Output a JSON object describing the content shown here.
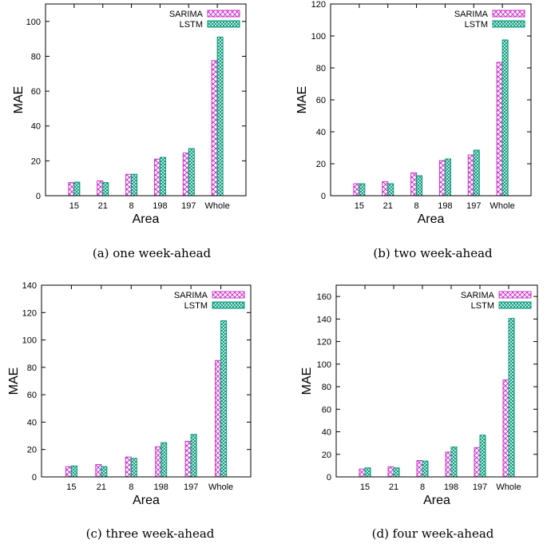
{
  "chart_data": [
    {
      "type": "bar",
      "panel": "a",
      "caption": "(a)  one week-ahead",
      "xlabel": "Area",
      "ylabel": "MAE",
      "categories": [
        "15",
        "21",
        "8",
        "198",
        "197",
        "Whole"
      ],
      "ylim": [
        0,
        110
      ],
      "yticks": [
        0,
        20,
        40,
        60,
        80,
        100
      ],
      "legend_position": "top-right",
      "series": [
        {
          "name": "SARIMA",
          "values": [
            7.5,
            8.5,
            12.3,
            21,
            24.5,
            77.5
          ],
          "color": "#cc33cc",
          "pattern": "cross-hatch"
        },
        {
          "name": "LSTM",
          "values": [
            7.8,
            7.5,
            12.3,
            22,
            27,
            91
          ],
          "color": "#009977",
          "pattern": "fine-cross-hatch"
        }
      ]
    },
    {
      "type": "bar",
      "panel": "b",
      "caption": "(b)  two week-ahead",
      "xlabel": "Area",
      "ylabel": "MAE",
      "categories": [
        "15",
        "21",
        "8",
        "198",
        "197",
        "Whole"
      ],
      "ylim": [
        0,
        120
      ],
      "yticks": [
        0,
        20,
        40,
        60,
        80,
        100,
        120
      ],
      "legend_position": "top-right",
      "series": [
        {
          "name": "SARIMA",
          "values": [
            7.5,
            8.8,
            14.3,
            22,
            25.5,
            83.5
          ],
          "color": "#cc33cc",
          "pattern": "cross-hatch"
        },
        {
          "name": "LSTM",
          "values": [
            7.5,
            7.5,
            12.5,
            23,
            28.5,
            97.5
          ],
          "color": "#009977",
          "pattern": "fine-cross-hatch"
        }
      ]
    },
    {
      "type": "bar",
      "panel": "c",
      "caption": "(c)  three week-ahead",
      "xlabel": "Area",
      "ylabel": "MAE",
      "categories": [
        "15",
        "21",
        "8",
        "198",
        "197",
        "Whole"
      ],
      "ylim": [
        0,
        140
      ],
      "yticks": [
        0,
        20,
        40,
        60,
        80,
        100,
        120,
        140
      ],
      "legend_position": "top-right",
      "series": [
        {
          "name": "SARIMA",
          "values": [
            7.5,
            9,
            14.5,
            22,
            26,
            85
          ],
          "color": "#cc33cc",
          "pattern": "cross-hatch"
        },
        {
          "name": "LSTM",
          "values": [
            8,
            7.5,
            13.5,
            25,
            31,
            114
          ],
          "color": "#009977",
          "pattern": "fine-cross-hatch"
        }
      ]
    },
    {
      "type": "bar",
      "panel": "d",
      "caption": "(d)  four week-ahead",
      "xlabel": "Area",
      "ylabel": "MAE",
      "categories": [
        "15",
        "21",
        "8",
        "198",
        "197",
        "Whole"
      ],
      "ylim": [
        0,
        170
      ],
      "yticks": [
        0,
        20,
        40,
        60,
        80,
        100,
        120,
        140,
        160
      ],
      "legend_position": "top-right",
      "series": [
        {
          "name": "SARIMA",
          "values": [
            7,
            9,
            14.5,
            22,
            26,
            86
          ],
          "color": "#cc33cc",
          "pattern": "cross-hatch"
        },
        {
          "name": "LSTM",
          "values": [
            8,
            8,
            14,
            26.5,
            37,
            140.5
          ],
          "color": "#009977",
          "pattern": "fine-cross-hatch"
        }
      ]
    }
  ]
}
